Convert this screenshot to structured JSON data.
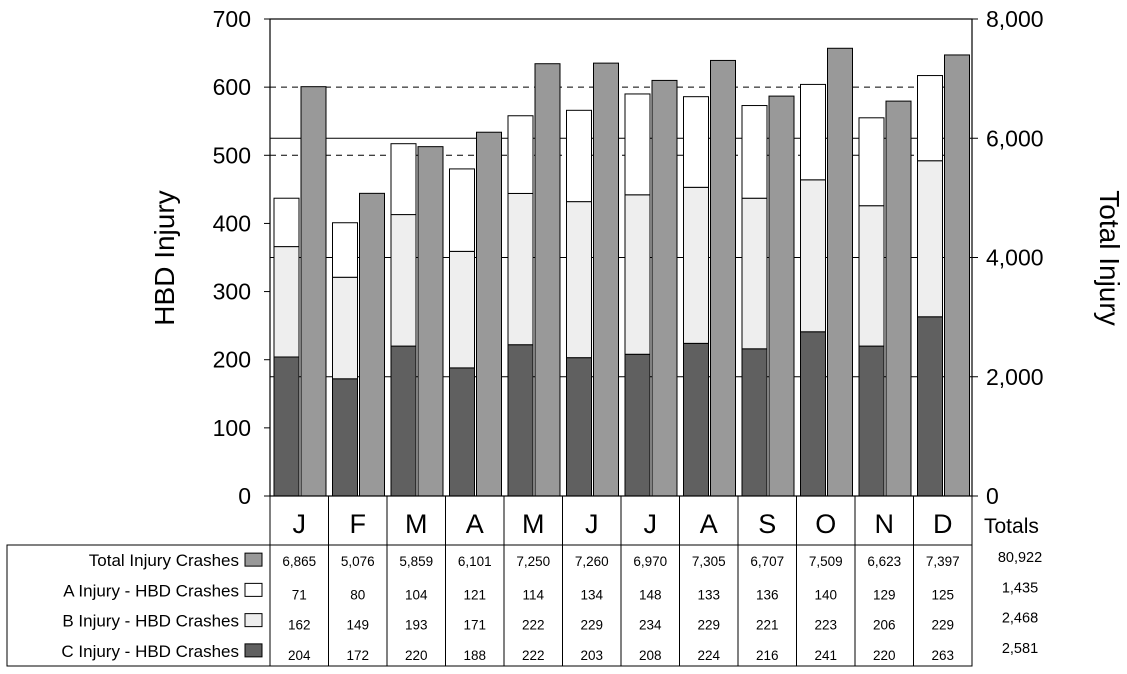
{
  "chart_data": {
    "type": "bar",
    "categories": [
      "J",
      "F",
      "M",
      "A",
      "M",
      "J",
      "J",
      "A",
      "S",
      "O",
      "N",
      "D"
    ],
    "ylabel_left": "HBD Injury",
    "ylabel_right": "Total Injury",
    "ylim_left": [
      0,
      700
    ],
    "ylim_right": [
      0,
      8000
    ],
    "yticks_left": [
      "0",
      "100",
      "200",
      "300",
      "400",
      "500",
      "600",
      "700"
    ],
    "yticks_right": [
      "0",
      "2,000",
      "4,000",
      "6,000",
      "8,000"
    ],
    "totals_header": "Totals",
    "grid": "dashed horizontal lines at 500 and 600 on left axis; solid lines at 2,000 intervals on right axis",
    "series": [
      {
        "name": "Total Injury Crashes",
        "axis": "right",
        "color": "#999999",
        "values": [
          6865,
          5076,
          5859,
          6101,
          7250,
          7260,
          6970,
          7305,
          6707,
          7509,
          6623,
          7397
        ],
        "labels": [
          "6,865",
          "5,076",
          "5,859",
          "6,101",
          "7,250",
          "7,260",
          "6,970",
          "7,305",
          "6,707",
          "7,509",
          "6,623",
          "7,397"
        ],
        "total": "80,922"
      },
      {
        "name": "A Injury - HBD Crashes",
        "axis": "left",
        "color": "#ffffff",
        "values": [
          71,
          80,
          104,
          121,
          114,
          134,
          148,
          133,
          136,
          140,
          129,
          125
        ],
        "labels": [
          "71",
          "80",
          "104",
          "121",
          "114",
          "134",
          "148",
          "133",
          "136",
          "140",
          "129",
          "125"
        ],
        "total": "1,435"
      },
      {
        "name": "B Injury - HBD Crashes",
        "axis": "left",
        "color": "#eeeeee",
        "values": [
          162,
          149,
          193,
          171,
          222,
          229,
          234,
          229,
          221,
          223,
          206,
          229
        ],
        "labels": [
          "162",
          "149",
          "193",
          "171",
          "222",
          "229",
          "234",
          "229",
          "221",
          "223",
          "206",
          "229"
        ],
        "total": "2,468"
      },
      {
        "name": "C Injury - HBD Crashes",
        "axis": "left",
        "color": "#606060",
        "values": [
          204,
          172,
          220,
          188,
          222,
          203,
          208,
          224,
          216,
          241,
          220,
          263
        ],
        "labels": [
          "204",
          "172",
          "220",
          "188",
          "222",
          "203",
          "208",
          "224",
          "216",
          "241",
          "220",
          "263"
        ],
        "total": "2,581"
      }
    ]
  }
}
